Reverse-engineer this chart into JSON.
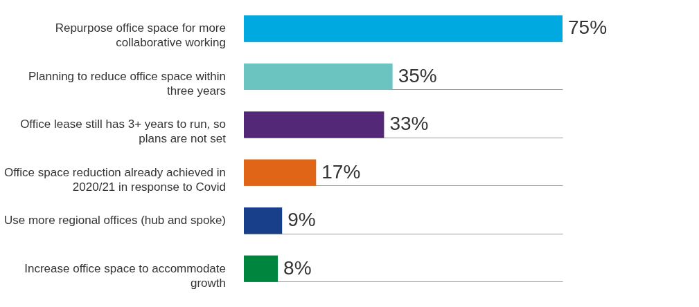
{
  "chart_data": {
    "type": "bar",
    "orientation": "horizontal",
    "categories": [
      "Repurpose office space for more collaborative working",
      "Planning to reduce office space within three years",
      "Office lease still has 3+ years to run, so plans are not set",
      "Office space reduction already achieved in 2020/21 in response to Covid",
      "Use more regional offices (hub and spoke)",
      "Increase office space to accommodate growth"
    ],
    "values": [
      75,
      35,
      33,
      17,
      9,
      8
    ],
    "value_labels": [
      "75%",
      "35%",
      "33%",
      "17%",
      "9%",
      "8%"
    ],
    "colors": [
      "#00a9e0",
      "#6bc4c0",
      "#532876",
      "#e06516",
      "#173f8a",
      "#00853f"
    ],
    "grid": "y"
  }
}
